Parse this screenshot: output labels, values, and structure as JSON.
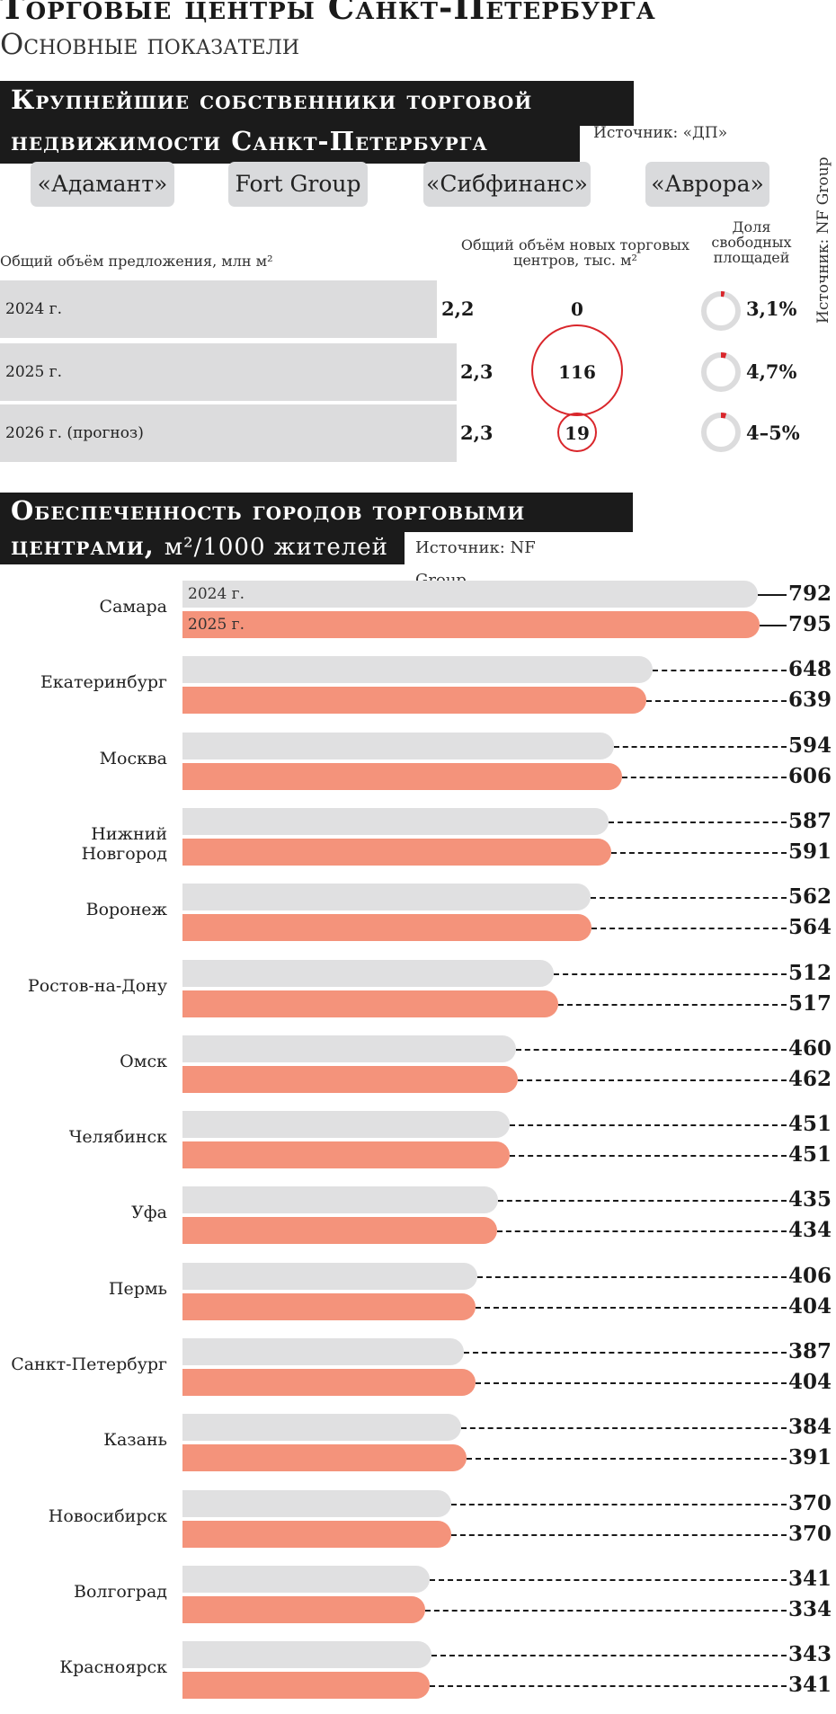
{
  "title": "Торговые центры Санкт-Петербурга",
  "subtitle": "Основные показатели",
  "section1": {
    "heading_line1": "Крупнейшие собственники торговой",
    "heading_line2": "недвижимости Санкт-Петербурга",
    "source": "Источник: «ДП»",
    "owners": [
      "«Адамант»",
      "Fort Group",
      "«Сибфинанс»",
      "«Аврора»"
    ],
    "col1_header": "Общий объём предложения, млн м²",
    "col2_header": "Общий объём новых торговых центров, тыс. м²",
    "col3_header": "Доля свободных площадей",
    "side_source": "Источник: NF Group",
    "rows": [
      {
        "year": "2024 г.",
        "supply": "2,2",
        "new": "0",
        "vacancy": "3,1%"
      },
      {
        "year": "2025 г.",
        "supply": "2,3",
        "new": "116",
        "vacancy": "4,7%"
      },
      {
        "year": "2026 г. (прогноз)",
        "supply": "2,3",
        "new": "19",
        "vacancy": "4–5%"
      }
    ]
  },
  "section2": {
    "heading_line1": "Обеспеченность городов торговыми",
    "heading_line2": "центрами,",
    "heading_unit": "м²/1000 жителей",
    "source": "Источник: NF Group"
  },
  "chart_data": {
    "type": "bar",
    "orientation": "horizontal",
    "colors": {
      "2024 г.": "#e0e0e1",
      "2025 г.": "#f4937b"
    },
    "categories": [
      "Самара",
      "Екатеринбург",
      "Москва",
      "Нижний Новгород",
      "Воронеж",
      "Ростов-на-Дону",
      "Омск",
      "Челябинск",
      "Уфа",
      "Пермь",
      "Санкт-Петербург",
      "Казань",
      "Новосибирск",
      "Волгоград",
      "Красноярск"
    ],
    "series": [
      {
        "name": "2024 г.",
        "values": [
          792,
          648,
          594,
          587,
          562,
          512,
          460,
          451,
          435,
          406,
          387,
          384,
          370,
          341,
          343
        ]
      },
      {
        "name": "2025 г.",
        "values": [
          795,
          639,
          606,
          591,
          564,
          517,
          462,
          451,
          434,
          404,
          404,
          391,
          370,
          334,
          341
        ]
      }
    ],
    "xlim": [
      0,
      795
    ]
  }
}
